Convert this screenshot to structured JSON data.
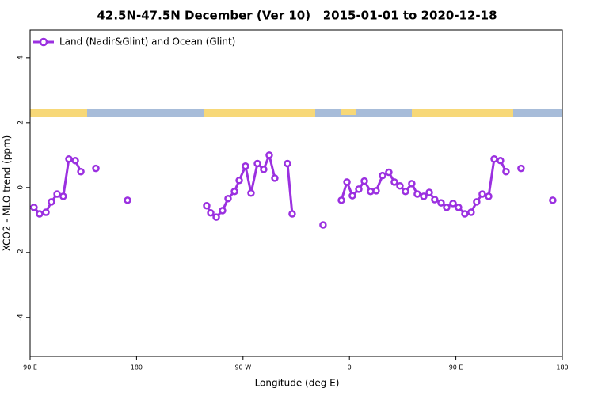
{
  "chart_data": {
    "type": "line",
    "title": "42.5N-47.5N December (Ver 10)   2015-01-01 to 2020-12-18",
    "x_label": "Longitude (deg E)",
    "y_label": "XCO2 - MLO trend (ppm)",
    "legend": "upper left",
    "x": [
      93.3,
      98,
      103.4,
      108,
      112.8,
      118,
      122.8,
      128.2,
      132.9,
      null,
      145.6,
      null,
      172.4,
      null,
      239.3,
      242.7,
      247.4,
      252.7,
      257.4,
      262.8,
      266.8,
      272.1,
      276.8,
      282.2,
      287.5,
      292.2,
      296.9,
      null,
      307.6,
      311.6,
      null,
      337.7,
      null,
      353.2,
      357.9,
      362.5,
      367.9,
      372.6,
      377.9,
      382.6,
      388,
      393.3,
      398,
      402.7,
      407.4,
      412.7,
      417.4,
      422.8,
      427.5,
      432.1,
      437.5,
      442.2,
      447.6,
      452.2,
      457.6,
      462.9,
      467.6,
      472.3,
      477.7,
      482.4,
      487.7,
      492.4,
      null,
      505.1,
      null,
      531.9
    ],
    "series": [
      {
        "name": "Land (Nadir&Glint) and Ocean (Glint)",
        "color": "#9b30e0",
        "values": [
          -0.61,
          -0.81,
          -0.76,
          -0.44,
          -0.2,
          -0.27,
          0.88,
          0.83,
          0.49,
          null,
          0.59,
          null,
          -0.39,
          null,
          -0.56,
          -0.78,
          -0.91,
          -0.71,
          -0.34,
          -0.12,
          0.22,
          0.66,
          -0.17,
          0.74,
          0.56,
          1.0,
          0.29,
          null,
          0.74,
          -0.81,
          null,
          -1.15,
          null,
          -0.39,
          0.17,
          -0.25,
          -0.05,
          0.2,
          -0.12,
          -0.1,
          0.37,
          0.47,
          0.17,
          0.05,
          -0.12,
          0.12,
          -0.2,
          -0.27,
          -0.15,
          -0.37,
          -0.47,
          -0.61,
          -0.49,
          -0.61,
          -0.81,
          -0.76,
          -0.44,
          -0.2,
          -0.27,
          0.88,
          0.83,
          0.49,
          null,
          0.59,
          null,
          -0.39
        ]
      }
    ],
    "xlim": [
      90,
      540
    ],
    "xticks": [
      {
        "value": 90,
        "label": "90 E"
      },
      180,
      {
        "value": 270,
        "label": "90 W"
      },
      {
        "value": 360,
        "label": "0"
      },
      {
        "value": 450,
        "label": "90 E"
      },
      {
        "value": 540,
        "label": "180"
      }
    ],
    "ylim": [
      -5.2,
      4.85
    ],
    "yticks": [
      -4,
      -2,
      0,
      2,
      4
    ]
  }
}
